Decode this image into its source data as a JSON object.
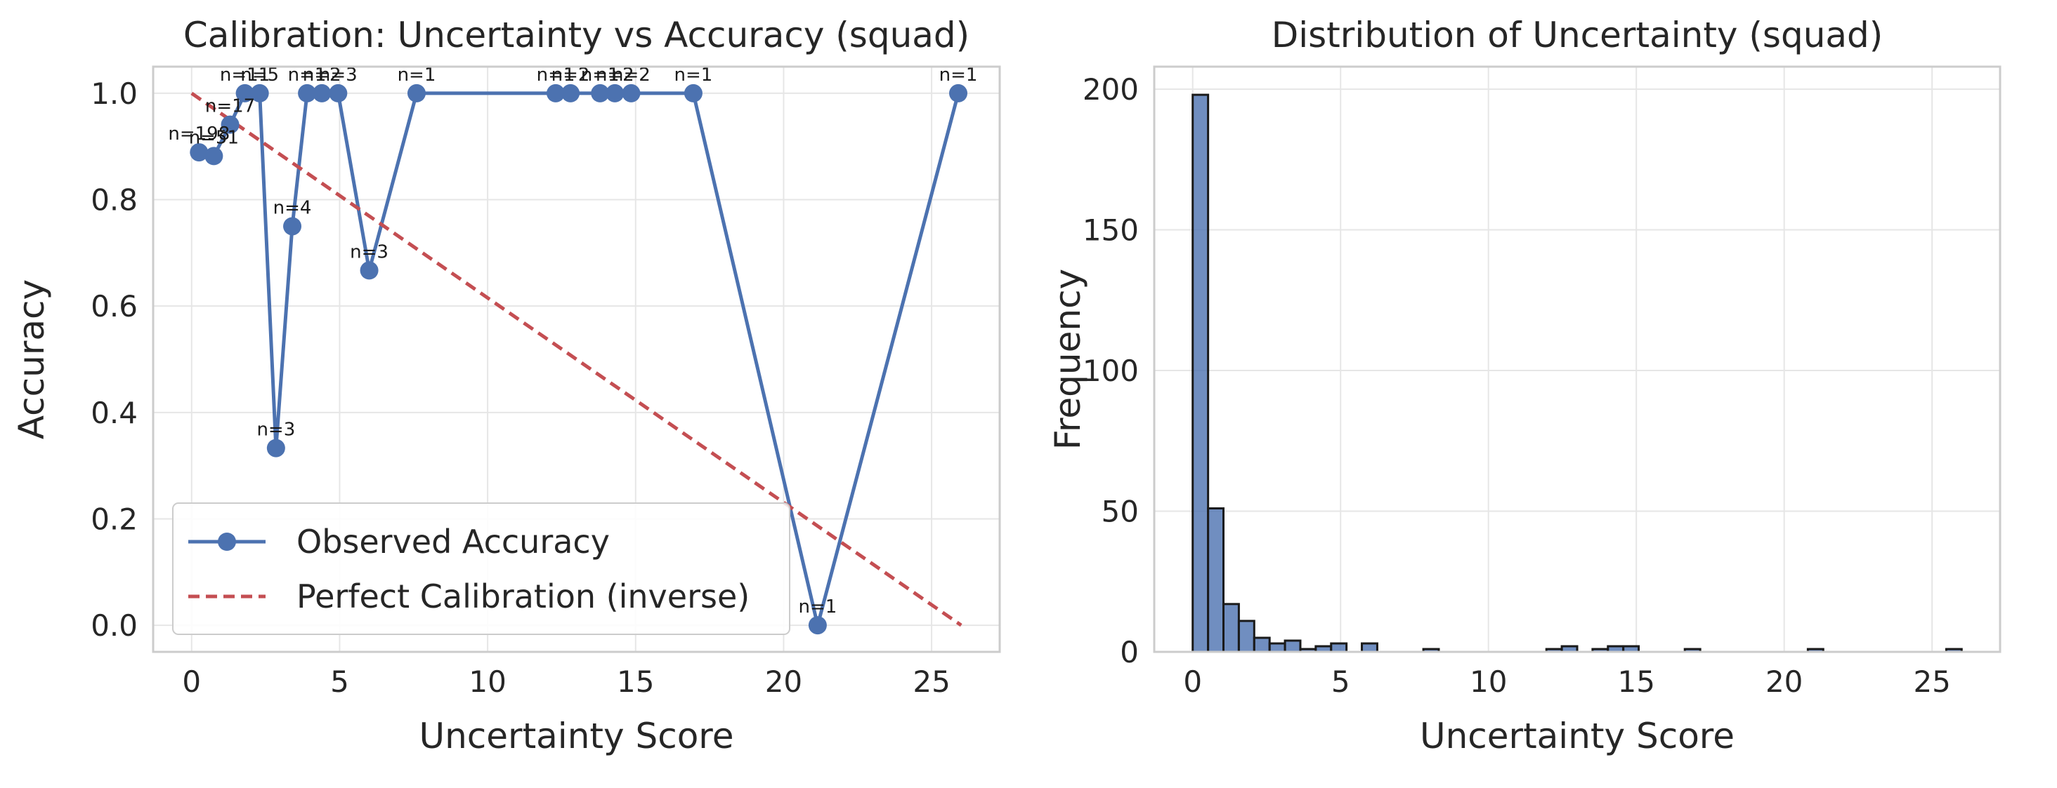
{
  "chart_data": [
    {
      "type": "line",
      "title": "Calibration: Uncertainty vs Accuracy (squad)",
      "xlabel": "Uncertainty Score",
      "ylabel": "Accuracy",
      "xlim": [
        -1.3,
        27.3
      ],
      "ylim": [
        -0.05,
        1.05
      ],
      "xticks": [
        0,
        5,
        10,
        15,
        20,
        25
      ],
      "yticks": [
        0.0,
        0.2,
        0.4,
        0.6,
        0.8,
        1.0
      ],
      "xtick_labels": [
        "0",
        "5",
        "10",
        "15",
        "20",
        "25"
      ],
      "ytick_labels": [
        "0.0",
        "0.2",
        "0.4",
        "0.6",
        "0.8",
        "1.0"
      ],
      "grid": true,
      "legend_position": "bottom-left",
      "series": [
        {
          "name": "Observed Accuracy",
          "color": "#4c72b0",
          "style": "solid-marker",
          "points": [
            {
              "x": 0.25,
              "y": 0.889,
              "label": "n=198"
            },
            {
              "x": 0.75,
              "y": 0.882,
              "label": "n=51"
            },
            {
              "x": 1.3,
              "y": 0.941,
              "label": "n=17"
            },
            {
              "x": 1.8,
              "y": 1.0,
              "label": "n=11"
            },
            {
              "x": 2.3,
              "y": 1.0,
              "label": "n=5"
            },
            {
              "x": 2.85,
              "y": 0.333,
              "label": "n=3"
            },
            {
              "x": 3.4,
              "y": 0.75,
              "label": "n=4"
            },
            {
              "x": 3.9,
              "y": 1.0,
              "label": "n=1"
            },
            {
              "x": 4.4,
              "y": 1.0,
              "label": "n=2"
            },
            {
              "x": 4.95,
              "y": 1.0,
              "label": "n=3"
            },
            {
              "x": 6.0,
              "y": 0.667,
              "label": "n=3"
            },
            {
              "x": 7.6,
              "y": 1.0,
              "label": "n=1"
            },
            {
              "x": 12.3,
              "y": 1.0,
              "label": "n=1"
            },
            {
              "x": 12.8,
              "y": 1.0,
              "label": "n=2"
            },
            {
              "x": 13.8,
              "y": 1.0,
              "label": "n=1"
            },
            {
              "x": 14.3,
              "y": 1.0,
              "label": "n=2"
            },
            {
              "x": 14.85,
              "y": 1.0,
              "label": "n=2"
            },
            {
              "x": 16.95,
              "y": 1.0,
              "label": "n=1"
            },
            {
              "x": 21.15,
              "y": 0.0,
              "label": "n=1"
            },
            {
              "x": 25.9,
              "y": 1.0,
              "label": "n=1"
            }
          ]
        },
        {
          "name": "Perfect Calibration (inverse)",
          "color": "#c44e52",
          "style": "dashed",
          "points": [
            {
              "x": 0.0,
              "y": 1.0
            },
            {
              "x": 26.0,
              "y": 0.0
            }
          ]
        }
      ]
    },
    {
      "type": "histogram",
      "title": "Distribution of Uncertainty (squad)",
      "xlabel": "Uncertainty Score",
      "ylabel": "Frequency",
      "xlim": [
        -1.3,
        27.3
      ],
      "ylim": [
        0,
        208
      ],
      "xticks": [
        0,
        5,
        10,
        15,
        20,
        25
      ],
      "yticks": [
        0,
        50,
        100,
        150,
        200
      ],
      "xtick_labels": [
        "0",
        "5",
        "10",
        "15",
        "20",
        "25"
      ],
      "ytick_labels": [
        "0",
        "50",
        "100",
        "150",
        "200"
      ],
      "grid": true,
      "color": "#4c72b0",
      "bin_start": 0.0,
      "bin_width": 0.52,
      "counts": [
        198,
        51,
        17,
        11,
        5,
        3,
        4,
        1,
        2,
        3,
        0,
        3,
        0,
        0,
        0,
        1,
        0,
        0,
        0,
        0,
        0,
        0,
        0,
        1,
        2,
        0,
        1,
        2,
        2,
        0,
        0,
        0,
        1,
        0,
        0,
        0,
        0,
        0,
        0,
        0,
        1,
        0,
        0,
        0,
        0,
        0,
        0,
        0,
        0,
        1
      ]
    }
  ]
}
